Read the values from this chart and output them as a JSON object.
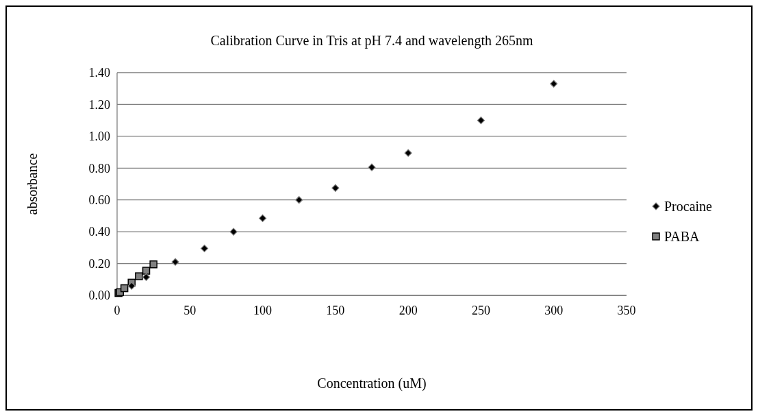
{
  "chart_data": {
    "type": "scatter",
    "title": "Calibration Curve in Tris at pH 7.4 and wavelength 265nm",
    "xlabel": "Concentration (uM)",
    "ylabel": "absorbance",
    "xlim": [
      0,
      350
    ],
    "xticks": [
      0,
      50,
      100,
      150,
      200,
      250,
      300,
      350
    ],
    "ylim": [
      0,
      1.4
    ],
    "yticks": [
      {
        "value": 0,
        "label": "0.00"
      },
      {
        "value": 0.2,
        "label": "0.20"
      },
      {
        "value": 0.4,
        "label": "0.40"
      },
      {
        "value": 0.6,
        "label": "0.60"
      },
      {
        "value": 0.8,
        "label": "0.80"
      },
      {
        "value": 1,
        "label": "1.00"
      },
      {
        "value": 1.2,
        "label": "1.20"
      },
      {
        "value": 1.4,
        "label": "1.40"
      }
    ],
    "grid": "y",
    "legend": "right",
    "series": [
      {
        "name": "Procaine",
        "color": "#000000",
        "marker": "diamond",
        "x": [
          10,
          20,
          40,
          60,
          80,
          100,
          125,
          150,
          175,
          200,
          250,
          300
        ],
        "values": [
          0.06,
          0.115,
          0.21,
          0.295,
          0.4,
          0.485,
          0.6,
          0.675,
          0.805,
          0.895,
          1.1,
          1.33
        ]
      },
      {
        "name": "PABA",
        "color": "#808080",
        "marker": "square",
        "x": [
          1,
          2,
          5,
          10,
          15,
          20,
          25
        ],
        "values": [
          0.015,
          0.02,
          0.045,
          0.08,
          0.12,
          0.155,
          0.195
        ]
      }
    ]
  }
}
